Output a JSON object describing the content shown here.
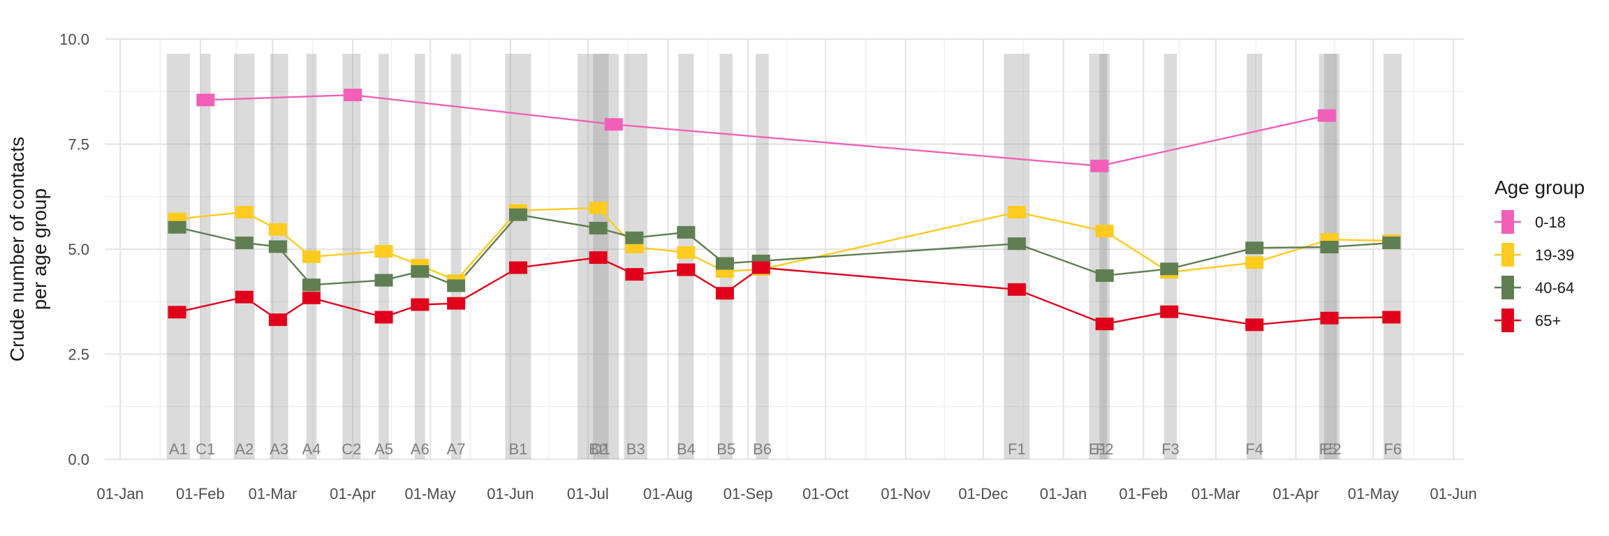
{
  "chart_data": {
    "type": "line",
    "ylabel_lines": [
      "Crude number of contacts",
      "per age group"
    ],
    "ylim": [
      0,
      10
    ],
    "yticks": [
      {
        "value": 0,
        "label": "0.0"
      },
      {
        "value": 2.5,
        "label": "2.5"
      },
      {
        "value": 5,
        "label": "5.0"
      },
      {
        "value": 7.5,
        "label": "7.5"
      },
      {
        "value": 10,
        "label": "10.0"
      }
    ],
    "xlim": [
      "2020-12-26",
      "2022-06-05"
    ],
    "xticks": [
      {
        "date": "2021-01-01",
        "label": "01-Jan"
      },
      {
        "date": "2021-02-01",
        "label": "01-Feb"
      },
      {
        "date": "2021-03-01",
        "label": "01-Mar"
      },
      {
        "date": "2021-04-01",
        "label": "01-Apr"
      },
      {
        "date": "2021-05-01",
        "label": "01-May"
      },
      {
        "date": "2021-06-01",
        "label": "01-Jun"
      },
      {
        "date": "2021-07-01",
        "label": "01-Jul"
      },
      {
        "date": "2021-08-01",
        "label": "01-Aug"
      },
      {
        "date": "2021-09-01",
        "label": "01-Sep"
      },
      {
        "date": "2021-10-01",
        "label": "01-Oct"
      },
      {
        "date": "2021-11-01",
        "label": "01-Nov"
      },
      {
        "date": "2021-12-01",
        "label": "01-Dec"
      },
      {
        "date": "2022-01-01",
        "label": "01-Jan"
      },
      {
        "date": "2022-02-01",
        "label": "01-Feb"
      },
      {
        "date": "2022-03-01",
        "label": "01-Mar"
      },
      {
        "date": "2022-04-01",
        "label": "01-Apr"
      },
      {
        "date": "2022-05-01",
        "label": "01-May"
      },
      {
        "date": "2022-06-01",
        "label": "01-Jun"
      }
    ],
    "grid": true,
    "legend": {
      "title": "Age group",
      "position": "right"
    },
    "waves": [
      {
        "label": "A1",
        "start": "2021-01-19",
        "end": "2021-01-28"
      },
      {
        "label": "C1",
        "start": "2021-02-01",
        "end": "2021-02-05"
      },
      {
        "label": "A2",
        "start": "2021-02-14",
        "end": "2021-02-22"
      },
      {
        "label": "A3",
        "start": "2021-02-28",
        "end": "2021-03-07"
      },
      {
        "label": "A4",
        "start": "2021-03-14",
        "end": "2021-03-18"
      },
      {
        "label": "C2",
        "start": "2021-03-28",
        "end": "2021-04-04"
      },
      {
        "label": "A5",
        "start": "2021-04-11",
        "end": "2021-04-15"
      },
      {
        "label": "A6",
        "start": "2021-04-25",
        "end": "2021-04-29"
      },
      {
        "label": "A7",
        "start": "2021-05-09",
        "end": "2021-05-13"
      },
      {
        "label": "B1",
        "start": "2021-05-30",
        "end": "2021-06-09"
      },
      {
        "label": "B2",
        "start": "2021-06-27",
        "end": "2021-07-13"
      },
      {
        "label": "D1",
        "start": "2021-07-03",
        "end": "2021-07-09"
      },
      {
        "label": "B3",
        "start": "2021-07-15",
        "end": "2021-07-24"
      },
      {
        "label": "B4",
        "start": "2021-08-05",
        "end": "2021-08-11"
      },
      {
        "label": "B5",
        "start": "2021-08-21",
        "end": "2021-08-26"
      },
      {
        "label": "B6",
        "start": "2021-09-04",
        "end": "2021-09-09"
      },
      {
        "label": "F1",
        "start": "2021-12-09",
        "end": "2021-12-19"
      },
      {
        "label": "E1",
        "start": "2022-01-11",
        "end": "2022-01-18"
      },
      {
        "label": "F2",
        "start": "2022-01-15",
        "end": "2022-01-19"
      },
      {
        "label": "F3",
        "start": "2022-02-09",
        "end": "2022-02-14"
      },
      {
        "label": "F4",
        "start": "2022-03-13",
        "end": "2022-03-19"
      },
      {
        "label": "F5",
        "start": "2022-04-10",
        "end": "2022-04-17"
      },
      {
        "label": "E2",
        "start": "2022-04-12",
        "end": "2022-04-18"
      },
      {
        "label": "F6",
        "start": "2022-05-05",
        "end": "2022-05-12"
      }
    ],
    "series": [
      {
        "name": "0-18",
        "color": "#f25fb9",
        "points": [
          {
            "x": "2021-02-03",
            "y": 8.55
          },
          {
            "x": "2021-04-01",
            "y": 8.67
          },
          {
            "x": "2021-07-11",
            "y": 7.97
          },
          {
            "x": "2022-01-15",
            "y": 6.98
          },
          {
            "x": "2022-04-13",
            "y": 8.18
          }
        ]
      },
      {
        "name": "19-39",
        "color": "#ffcb1f",
        "points": [
          {
            "x": "2021-01-23",
            "y": 5.72
          },
          {
            "x": "2021-02-18",
            "y": 5.88
          },
          {
            "x": "2021-03-03",
            "y": 5.47
          },
          {
            "x": "2021-03-16",
            "y": 4.82
          },
          {
            "x": "2021-04-13",
            "y": 4.95
          },
          {
            "x": "2021-04-27",
            "y": 4.62
          },
          {
            "x": "2021-05-11",
            "y": 4.25
          },
          {
            "x": "2021-06-04",
            "y": 5.92
          },
          {
            "x": "2021-07-05",
            "y": 5.98
          },
          {
            "x": "2021-07-19",
            "y": 5.05
          },
          {
            "x": "2021-08-08",
            "y": 4.92
          },
          {
            "x": "2021-08-23",
            "y": 4.47
          },
          {
            "x": "2021-09-06",
            "y": 4.52
          },
          {
            "x": "2021-12-14",
            "y": 5.88
          },
          {
            "x": "2022-01-17",
            "y": 5.43
          },
          {
            "x": "2022-02-11",
            "y": 4.45
          },
          {
            "x": "2022-03-16",
            "y": 4.68
          },
          {
            "x": "2022-04-14",
            "y": 5.23
          },
          {
            "x": "2022-05-08",
            "y": 5.2
          }
        ]
      },
      {
        "name": "40-64",
        "color": "#5f7f52",
        "points": [
          {
            "x": "2021-01-23",
            "y": 5.52
          },
          {
            "x": "2021-02-18",
            "y": 5.15
          },
          {
            "x": "2021-03-03",
            "y": 5.06
          },
          {
            "x": "2021-03-16",
            "y": 4.15
          },
          {
            "x": "2021-04-13",
            "y": 4.26
          },
          {
            "x": "2021-04-27",
            "y": 4.47
          },
          {
            "x": "2021-05-11",
            "y": 4.13
          },
          {
            "x": "2021-06-04",
            "y": 5.82
          },
          {
            "x": "2021-07-05",
            "y": 5.5
          },
          {
            "x": "2021-07-19",
            "y": 5.27
          },
          {
            "x": "2021-08-08",
            "y": 5.4
          },
          {
            "x": "2021-08-23",
            "y": 4.66
          },
          {
            "x": "2021-09-06",
            "y": 4.72
          },
          {
            "x": "2021-12-14",
            "y": 5.13
          },
          {
            "x": "2022-01-17",
            "y": 4.37
          },
          {
            "x": "2022-02-11",
            "y": 4.53
          },
          {
            "x": "2022-03-16",
            "y": 5.03
          },
          {
            "x": "2022-04-14",
            "y": 5.05
          },
          {
            "x": "2022-05-08",
            "y": 5.15
          }
        ]
      },
      {
        "name": "65+",
        "color": "#e0001b",
        "points": [
          {
            "x": "2021-01-23",
            "y": 3.5
          },
          {
            "x": "2021-02-18",
            "y": 3.86
          },
          {
            "x": "2021-03-03",
            "y": 3.32
          },
          {
            "x": "2021-03-16",
            "y": 3.84
          },
          {
            "x": "2021-04-13",
            "y": 3.38
          },
          {
            "x": "2021-04-27",
            "y": 3.68
          },
          {
            "x": "2021-05-11",
            "y": 3.71
          },
          {
            "x": "2021-06-04",
            "y": 4.56
          },
          {
            "x": "2021-07-05",
            "y": 4.8
          },
          {
            "x": "2021-07-19",
            "y": 4.4
          },
          {
            "x": "2021-08-08",
            "y": 4.51
          },
          {
            "x": "2021-08-23",
            "y": 3.95
          },
          {
            "x": "2021-09-06",
            "y": 4.56
          },
          {
            "x": "2021-12-14",
            "y": 4.04
          },
          {
            "x": "2022-01-17",
            "y": 3.22
          },
          {
            "x": "2022-02-11",
            "y": 3.51
          },
          {
            "x": "2022-03-16",
            "y": 3.2
          },
          {
            "x": "2022-04-14",
            "y": 3.36
          },
          {
            "x": "2022-05-08",
            "y": 3.38
          }
        ]
      }
    ]
  }
}
